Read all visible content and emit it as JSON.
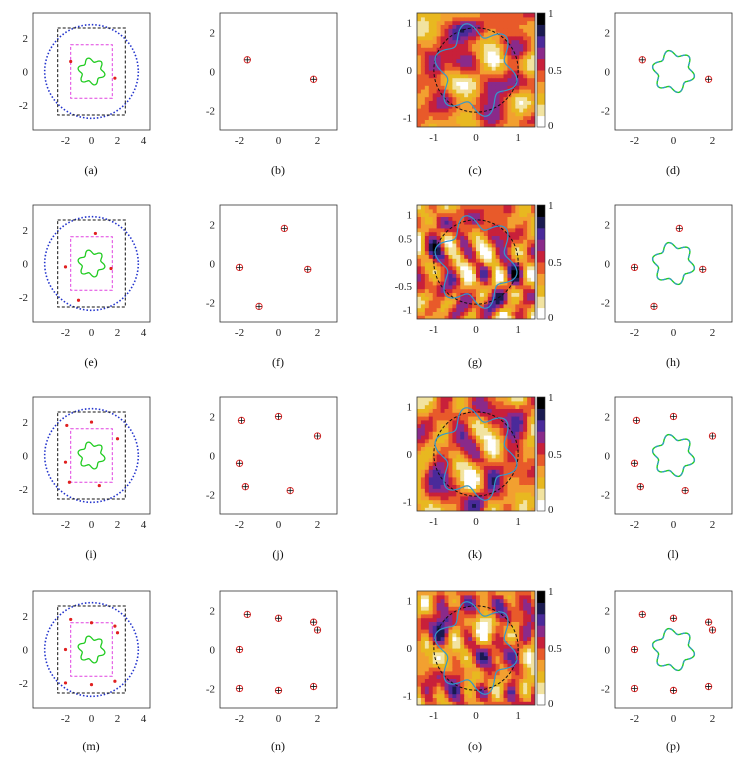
{
  "panels": [
    {
      "id": "a",
      "caption": "(a)",
      "kind": "geometry",
      "xticks": [
        "-2",
        "0",
        "2",
        "4"
      ],
      "yticks": [
        "2",
        "0",
        "-2"
      ]
    },
    {
      "id": "b",
      "caption": "(b)",
      "kind": "recon",
      "xticks": [
        "-2",
        "0",
        "2"
      ],
      "yticks": [
        "2",
        "0",
        "-2"
      ]
    },
    {
      "id": "c",
      "caption": "(c)",
      "kind": "heat",
      "xticks": [
        "-1",
        "0",
        "1"
      ],
      "yticks": [
        "1",
        "0",
        "-1"
      ],
      "cbticks": [
        "1",
        "0.5",
        "0"
      ],
      "seed": 3
    },
    {
      "id": "d",
      "caption": "(d)",
      "kind": "overlay",
      "xticks": [
        "-2",
        "0",
        "2"
      ],
      "yticks": [
        "2",
        "0",
        "-2"
      ]
    },
    {
      "id": "e",
      "caption": "(e)",
      "kind": "geometry",
      "xticks": [
        "-2",
        "0",
        "2",
        "4"
      ],
      "yticks": [
        "2",
        "0",
        "-2"
      ]
    },
    {
      "id": "f",
      "caption": "(f)",
      "kind": "recon",
      "xticks": [
        "-2",
        "0",
        "2"
      ],
      "yticks": [
        "2",
        "0",
        "-2"
      ]
    },
    {
      "id": "g",
      "caption": "(g)",
      "kind": "heat",
      "xticks": [
        "-1",
        "0",
        "1"
      ],
      "yticks": [
        "1",
        "0.5",
        "0",
        "-0.5",
        "-1"
      ],
      "cbticks": [
        "1",
        "0.5",
        "0"
      ],
      "seed": 7
    },
    {
      "id": "h",
      "caption": "(h)",
      "kind": "overlay",
      "xticks": [
        "-2",
        "0",
        "2"
      ],
      "yticks": [
        "2",
        "0",
        "-2"
      ]
    },
    {
      "id": "i",
      "caption": "(i)",
      "kind": "geometry",
      "xticks": [
        "-2",
        "0",
        "2",
        "4"
      ],
      "yticks": [
        "2",
        "0",
        "-2"
      ]
    },
    {
      "id": "j",
      "caption": "(j)",
      "kind": "recon",
      "xticks": [
        "-2",
        "0",
        "2"
      ],
      "yticks": [
        "2",
        "0",
        "-2"
      ]
    },
    {
      "id": "k",
      "caption": "(k)",
      "kind": "heat",
      "xticks": [
        "-1",
        "0",
        "1"
      ],
      "yticks": [
        "1",
        "0",
        "-1"
      ],
      "cbticks": [
        "1",
        "0.5",
        "0"
      ],
      "seed": 11
    },
    {
      "id": "l",
      "caption": "(l)",
      "kind": "overlay",
      "xticks": [
        "-2",
        "0",
        "2"
      ],
      "yticks": [
        "2",
        "0",
        "-2"
      ]
    },
    {
      "id": "m",
      "caption": "(m)",
      "kind": "geometry",
      "xticks": [
        "-2",
        "0",
        "2",
        "4"
      ],
      "yticks": [
        "2",
        "0",
        "-2"
      ]
    },
    {
      "id": "n",
      "caption": "(n)",
      "kind": "recon",
      "xticks": [
        "-2",
        "0",
        "2"
      ],
      "yticks": [
        "2",
        "0",
        "-2"
      ]
    },
    {
      "id": "o",
      "caption": "(o)",
      "kind": "heat",
      "xticks": [
        "-1",
        "0",
        "1"
      ],
      "yticks": [
        "1",
        "0",
        "-1"
      ],
      "cbticks": [
        "1",
        "0.5",
        "0"
      ],
      "seed": 19
    },
    {
      "id": "p",
      "caption": "(p)",
      "kind": "overlay",
      "xticks": [
        "-2",
        "0",
        "2"
      ],
      "yticks": [
        "2",
        "0",
        "-2"
      ]
    }
  ],
  "chart_data": [
    {
      "type": "scatter",
      "row": 1,
      "sources": [
        [
          -1.6,
          0.6
        ],
        [
          1.8,
          -0.4
        ]
      ]
    },
    {
      "type": "scatter",
      "row": 2,
      "sources": [
        [
          0.3,
          1.8
        ],
        [
          -2.0,
          -0.2
        ],
        [
          1.5,
          -0.3
        ],
        [
          -1.0,
          -2.2
        ]
      ]
    },
    {
      "type": "scatter",
      "row": 3,
      "sources": [
        [
          -1.9,
          1.8
        ],
        [
          0.0,
          2.0
        ],
        [
          2.0,
          1.0
        ],
        [
          -2.0,
          -0.4
        ],
        [
          -1.7,
          -1.6
        ],
        [
          0.6,
          -1.8
        ]
      ]
    },
    {
      "type": "scatter",
      "row": 4,
      "sources": [
        [
          -1.6,
          1.8
        ],
        [
          0.0,
          1.6
        ],
        [
          1.8,
          1.4
        ],
        [
          2.0,
          1.0
        ],
        [
          -2.0,
          0.0
        ],
        [
          -2.0,
          -2.0
        ],
        [
          0.0,
          -2.1
        ],
        [
          1.8,
          -1.9
        ]
      ]
    }
  ],
  "colors": {
    "obstacle": "#22cc22",
    "box": "#111111",
    "inner_box": "#e040e0",
    "source": "#e02020",
    "circle": "#2233cc",
    "recon_curve": "#3399cc",
    "dashed": "#111111"
  }
}
